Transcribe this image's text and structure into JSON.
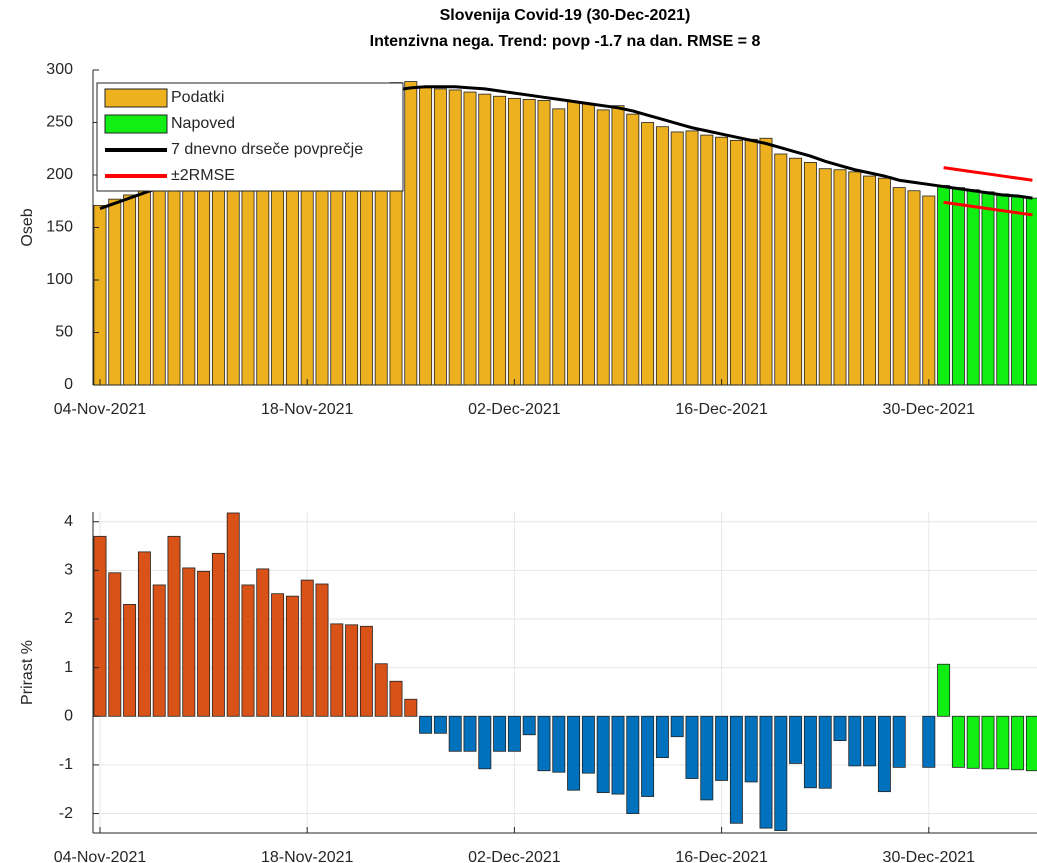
{
  "chart_data": [
    {
      "type": "bar",
      "title": "Slovenija Covid-19 (30-Dec-2021)",
      "subtitle": "Intenzivna nega. Trend: povp -1.7 na dan. RMSE = 8",
      "ylabel": "Oseb",
      "categories": [
        "04-Nov-2021",
        "05-Nov-2021",
        "06-Nov-2021",
        "07-Nov-2021",
        "08-Nov-2021",
        "09-Nov-2021",
        "10-Nov-2021",
        "11-Nov-2021",
        "12-Nov-2021",
        "13-Nov-2021",
        "14-Nov-2021",
        "15-Nov-2021",
        "16-Nov-2021",
        "17-Nov-2021",
        "18-Nov-2021",
        "19-Nov-2021",
        "20-Nov-2021",
        "21-Nov-2021",
        "22-Nov-2021",
        "23-Nov-2021",
        "24-Nov-2021",
        "25-Nov-2021",
        "26-Nov-2021",
        "27-Nov-2021",
        "28-Nov-2021",
        "29-Nov-2021",
        "30-Nov-2021",
        "01-Dec-2021",
        "02-Dec-2021",
        "03-Dec-2021",
        "04-Dec-2021",
        "05-Dec-2021",
        "06-Dec-2021",
        "07-Dec-2021",
        "08-Dec-2021",
        "09-Dec-2021",
        "10-Dec-2021",
        "11-Dec-2021",
        "12-Dec-2021",
        "13-Dec-2021",
        "14-Dec-2021",
        "15-Dec-2021",
        "16-Dec-2021",
        "17-Dec-2021",
        "18-Dec-2021",
        "19-Dec-2021",
        "20-Dec-2021",
        "21-Dec-2021",
        "22-Dec-2021",
        "23-Dec-2021",
        "24-Dec-2021",
        "25-Dec-2021",
        "26-Dec-2021",
        "27-Dec-2021",
        "28-Dec-2021",
        "29-Dec-2021",
        "30-Dec-2021",
        "31-Dec-2021",
        "01-Jan-2022",
        "02-Jan-2022",
        "03-Jan-2022",
        "04-Jan-2022",
        "05-Jan-2022",
        "06-Jan-2022"
      ],
      "xticks": [
        "04-Nov-2021",
        "18-Nov-2021",
        "02-Dec-2021",
        "16-Dec-2021",
        "30-Dec-2021"
      ],
      "ylim": [
        0,
        300
      ],
      "yticks": [
        0,
        50,
        100,
        150,
        200,
        250,
        300
      ],
      "grid": false,
      "legend": "upper left",
      "series": [
        {
          "name": "Podatki",
          "type": "bar",
          "color": "#edb120",
          "values": [
            171,
            177,
            181,
            187,
            191,
            197,
            203,
            209,
            216,
            224,
            233,
            240,
            247,
            253,
            260,
            266,
            271,
            276,
            280,
            284,
            288,
            289,
            283,
            282,
            281,
            279,
            277,
            275,
            273,
            272,
            271,
            263,
            270,
            268,
            262,
            266,
            258,
            250,
            246,
            241,
            242,
            238,
            236,
            233,
            234,
            235,
            220,
            216,
            212,
            206,
            205,
            203,
            199,
            197,
            188,
            185,
            180,
            null,
            null,
            null,
            null,
            null,
            null,
            null
          ]
        },
        {
          "name": "Napoved",
          "type": "bar",
          "color": "#11ee11",
          "values": [
            null,
            null,
            null,
            null,
            null,
            null,
            null,
            null,
            null,
            null,
            null,
            null,
            null,
            null,
            null,
            null,
            null,
            null,
            null,
            null,
            null,
            null,
            null,
            null,
            null,
            null,
            null,
            null,
            null,
            null,
            null,
            null,
            null,
            null,
            null,
            null,
            null,
            null,
            null,
            null,
            null,
            null,
            null,
            null,
            null,
            null,
            null,
            null,
            null,
            null,
            null,
            null,
            null,
            null,
            null,
            null,
            null,
            190,
            188,
            186,
            184,
            182,
            180,
            178
          ]
        },
        {
          "name": "7 dnevno drseče povprečje",
          "type": "line",
          "color": "#000000",
          "values": [
            168,
            173,
            178,
            183,
            188,
            193,
            199,
            205,
            212,
            219,
            226,
            233,
            240,
            247,
            253,
            259,
            265,
            270,
            274,
            278,
            281,
            283,
            284,
            284,
            284,
            283,
            282,
            280,
            278,
            276,
            274,
            272,
            270,
            268,
            266,
            264,
            261,
            257,
            253,
            249,
            245,
            242,
            239,
            236,
            233,
            230,
            226,
            222,
            218,
            213,
            209,
            205,
            202,
            199,
            195,
            193,
            191,
            189,
            187,
            185,
            183,
            181,
            180,
            178
          ]
        },
        {
          "name": "±2RMSE",
          "type": "line",
          "color": "#ff0000",
          "values": [
            null,
            null,
            null,
            null,
            null,
            null,
            null,
            null,
            null,
            null,
            null,
            null,
            null,
            null,
            null,
            null,
            null,
            null,
            null,
            null,
            null,
            null,
            null,
            null,
            null,
            null,
            null,
            null,
            null,
            null,
            null,
            null,
            null,
            null,
            null,
            null,
            null,
            null,
            null,
            null,
            null,
            null,
            null,
            null,
            null,
            null,
            null,
            null,
            null,
            null,
            null,
            null,
            null,
            null,
            null,
            null,
            null,
            207,
            205,
            203,
            201,
            199,
            197,
            195
          ],
          "lower": [
            null,
            null,
            null,
            null,
            null,
            null,
            null,
            null,
            null,
            null,
            null,
            null,
            null,
            null,
            null,
            null,
            null,
            null,
            null,
            null,
            null,
            null,
            null,
            null,
            null,
            null,
            null,
            null,
            null,
            null,
            null,
            null,
            null,
            null,
            null,
            null,
            null,
            null,
            null,
            null,
            null,
            null,
            null,
            null,
            null,
            null,
            null,
            null,
            null,
            null,
            null,
            null,
            null,
            null,
            null,
            null,
            null,
            174,
            172,
            170,
            168,
            166,
            164,
            162
          ]
        }
      ]
    },
    {
      "type": "bar",
      "ylabel": "Prirast %",
      "categories": [
        "04-Nov-2021",
        "05-Nov-2021",
        "06-Nov-2021",
        "07-Nov-2021",
        "08-Nov-2021",
        "09-Nov-2021",
        "10-Nov-2021",
        "11-Nov-2021",
        "12-Nov-2021",
        "13-Nov-2021",
        "14-Nov-2021",
        "15-Nov-2021",
        "16-Nov-2021",
        "17-Nov-2021",
        "18-Nov-2021",
        "19-Nov-2021",
        "20-Nov-2021",
        "21-Nov-2021",
        "22-Nov-2021",
        "23-Nov-2021",
        "24-Nov-2021",
        "25-Nov-2021",
        "26-Nov-2021",
        "27-Nov-2021",
        "28-Nov-2021",
        "29-Nov-2021",
        "30-Nov-2021",
        "01-Dec-2021",
        "02-Dec-2021",
        "03-Dec-2021",
        "04-Dec-2021",
        "05-Dec-2021",
        "06-Dec-2021",
        "07-Dec-2021",
        "08-Dec-2021",
        "09-Dec-2021",
        "10-Dec-2021",
        "11-Dec-2021",
        "12-Dec-2021",
        "13-Dec-2021",
        "14-Dec-2021",
        "15-Dec-2021",
        "16-Dec-2021",
        "17-Dec-2021",
        "18-Dec-2021",
        "19-Dec-2021",
        "20-Dec-2021",
        "21-Dec-2021",
        "22-Dec-2021",
        "23-Dec-2021",
        "24-Dec-2021",
        "25-Dec-2021",
        "26-Dec-2021",
        "27-Dec-2021",
        "28-Dec-2021",
        "29-Dec-2021",
        "30-Dec-2021",
        "31-Dec-2021",
        "01-Jan-2022",
        "02-Jan-2022",
        "03-Jan-2022",
        "04-Jan-2022",
        "05-Jan-2022",
        "06-Jan-2022"
      ],
      "xticks": [
        "04-Nov-2021",
        "18-Nov-2021",
        "02-Dec-2021",
        "16-Dec-2021",
        "30-Dec-2021"
      ],
      "ylim": [
        -2.4,
        4.2
      ],
      "yticks": [
        -2,
        -1,
        0,
        1,
        2,
        3,
        4
      ],
      "grid": true,
      "series": [
        {
          "color": "#d95319",
          "values": [
            3.7,
            2.95,
            2.3,
            3.38,
            2.7,
            3.7,
            3.05,
            2.98,
            3.35,
            4.18,
            2.7,
            3.03,
            2.52,
            2.47,
            2.8,
            2.72,
            1.9,
            1.88,
            1.85,
            1.08,
            0.72,
            0.35,
            null,
            null,
            null,
            null,
            null,
            null,
            null,
            null,
            null,
            null,
            null,
            null,
            null,
            null,
            null,
            null,
            null,
            null,
            null,
            null,
            null,
            null,
            null,
            null,
            null,
            null,
            null,
            null,
            null,
            null,
            null,
            null,
            null,
            null,
            null,
            null,
            null,
            null,
            null,
            null,
            null,
            null
          ]
        },
        {
          "color": "#0072bd",
          "values": [
            null,
            null,
            null,
            null,
            null,
            null,
            null,
            null,
            null,
            null,
            null,
            null,
            null,
            null,
            null,
            null,
            null,
            null,
            null,
            null,
            null,
            null,
            -0.35,
            -0.35,
            -0.72,
            -0.72,
            -1.08,
            -0.72,
            -0.72,
            -0.38,
            -1.12,
            -1.15,
            -1.52,
            -1.17,
            -1.57,
            -1.6,
            -2.0,
            -1.65,
            -0.85,
            -0.42,
            -1.28,
            -1.72,
            -1.32,
            -2.2,
            -1.35,
            -2.3,
            -2.35,
            -0.97,
            -1.47,
            -1.48,
            -0.5,
            -1.02,
            -1.02,
            -1.55,
            -1.05,
            null,
            -1.05,
            null,
            null,
            null,
            null,
            null,
            null,
            null
          ]
        },
        {
          "color": "#11ee11",
          "values": [
            null,
            null,
            null,
            null,
            null,
            null,
            null,
            null,
            null,
            null,
            null,
            null,
            null,
            null,
            null,
            null,
            null,
            null,
            null,
            null,
            null,
            null,
            null,
            null,
            null,
            null,
            null,
            null,
            null,
            null,
            null,
            null,
            null,
            null,
            null,
            null,
            null,
            null,
            null,
            null,
            null,
            null,
            null,
            null,
            null,
            null,
            null,
            null,
            null,
            null,
            null,
            null,
            null,
            null,
            null,
            null,
            null,
            1.07,
            -1.05,
            -1.07,
            -1.08,
            -1.08,
            -1.1,
            -1.12
          ]
        }
      ]
    }
  ]
}
